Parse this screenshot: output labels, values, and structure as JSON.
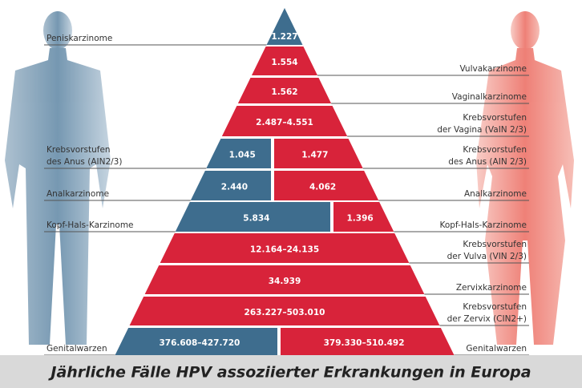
{
  "rows": [
    {
      "left_label": [
        "Peniskarzinome"
      ],
      "male": "1.227"
    },
    {
      "female": "1.554",
      "right_label": [
        "Vulvakarzinome"
      ]
    },
    {
      "female": "1.562",
      "right_label": [
        "Vaginalkarzinome"
      ]
    },
    {
      "female": "2.487–4.551",
      "right_label": [
        "Krebsvorstufen",
        "der Vagina (VaIN 2/3)"
      ]
    },
    {
      "left_label": [
        "Krebsvorstufen",
        "des Anus (AIN2/3)"
      ],
      "male": "1.045",
      "female": "1.477",
      "right_label": [
        "Krebsvorstufen",
        "des Anus (AIN 2/3)"
      ]
    },
    {
      "left_label": [
        "Analkarzinome"
      ],
      "male": "2.440",
      "female": "4.062",
      "right_label": [
        "Analkarzinome"
      ]
    },
    {
      "left_label": [
        "Kopf-Hals-Karzinome"
      ],
      "male": "5.834",
      "female": "1.396",
      "right_label": [
        "Kopf-Hals-Karzinome"
      ]
    },
    {
      "female": "12.164–24.135",
      "right_label": [
        "Krebsvorstufen",
        "der Vulva (VIN 2/3)"
      ]
    },
    {
      "female": "34.939",
      "right_label": [
        "Zervixkarzinome"
      ]
    },
    {
      "female": "263.227–503.010",
      "right_label": [
        "Krebsvorstufen",
        "der Zervix (CIN2+)"
      ]
    },
    {
      "left_label": [
        "Genitalwarzen"
      ],
      "male": "376.608–427.720",
      "female": "379.330–510.492",
      "right_label": [
        "Genitalwarzen"
      ]
    }
  ],
  "caption": "Jährliche Fälle HPV assoziierter Erkrankungen in Europa"
}
